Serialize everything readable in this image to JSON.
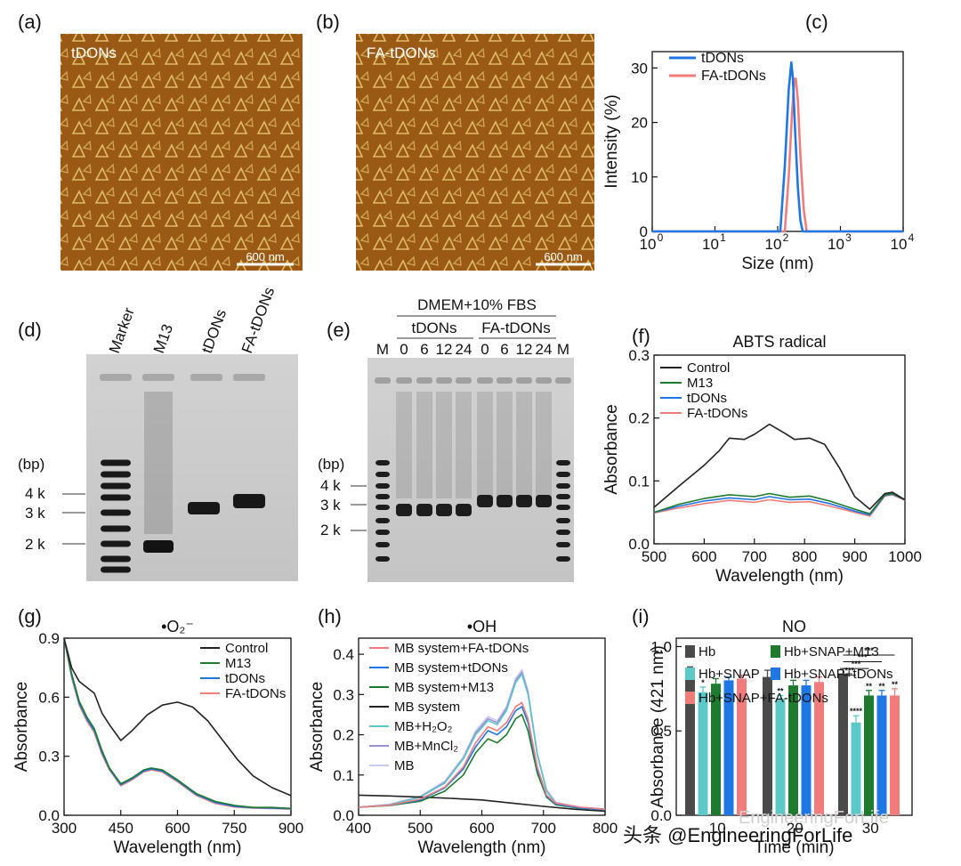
{
  "panels": {
    "a": {
      "letter": "(a)",
      "label": "tDONs",
      "scale_bar": "600 nm"
    },
    "b": {
      "letter": "(b)",
      "label": "FA-tDONs",
      "scale_bar": "600 nm"
    },
    "d": {
      "letter": "(d)",
      "lanes": [
        "Marker",
        "M13",
        "tDONs",
        "FA-tDONs"
      ],
      "bp_label": "(bp)",
      "ladder": [
        "4 k",
        "3 k",
        "2 k"
      ]
    },
    "e": {
      "letter": "(e)",
      "header": "DMEM+10% FBS",
      "groups": [
        "tDONs",
        "FA-tDONs"
      ],
      "lanes": [
        "M",
        "0",
        "6",
        "12",
        "24",
        "0",
        "6",
        "12",
        "24",
        "M"
      ],
      "bp_label": "(bp)",
      "ladder": [
        "4 k",
        "3 k",
        "2 k"
      ]
    }
  },
  "watermark": {
    "ghost": "EngineeringForLife",
    "text": "头条 @EngineeringForLife"
  },
  "chart_data": [
    {
      "id": "c",
      "letter": "(c)",
      "type": "line",
      "xscale": "log",
      "title": "",
      "xlabel": "Size (nm)",
      "ylabel": "Intensity (%)",
      "xlim": [
        1,
        10000
      ],
      "ylim": [
        0,
        33
      ],
      "xticks": [
        "10",
        "10",
        "10",
        "10",
        "10"
      ],
      "xtick_exp": [
        "0",
        "1",
        "2",
        "3",
        "4"
      ],
      "yticks": [
        "0",
        "10",
        "20",
        "30"
      ],
      "series": [
        {
          "name": "tDONs",
          "color": "#1f77e6",
          "x": [
            1,
            110,
            130,
            150,
            165,
            175,
            190,
            210,
            230,
            250,
            10000
          ],
          "y": [
            0,
            0,
            12,
            26,
            31,
            28,
            18,
            8,
            2,
            0,
            0
          ]
        },
        {
          "name": "FA-tDONs",
          "color": "#f07c7c",
          "x": [
            1,
            130,
            150,
            170,
            185,
            195,
            210,
            230,
            260,
            290,
            10000
          ],
          "y": [
            0,
            0,
            10,
            22,
            28,
            28,
            24,
            14,
            4,
            0,
            0
          ]
        }
      ]
    },
    {
      "id": "f",
      "letter": "(f)",
      "type": "line",
      "title": "ABTS radical",
      "xlabel": "Wavelength (nm)",
      "ylabel": "Absorbance",
      "xlim": [
        500,
        1000
      ],
      "ylim": [
        0,
        0.3
      ],
      "xticks": [
        "500",
        "600",
        "700",
        "800",
        "900",
        "1000"
      ],
      "yticks": [
        "0.0",
        "0.1",
        "0.2",
        "0.3"
      ],
      "series": [
        {
          "name": "Control",
          "color": "#222222",
          "x": [
            500,
            550,
            600,
            630,
            650,
            680,
            700,
            730,
            760,
            780,
            810,
            840,
            870,
            900,
            930,
            960,
            975,
            1000
          ],
          "y": [
            0.058,
            0.092,
            0.125,
            0.148,
            0.168,
            0.166,
            0.174,
            0.19,
            0.176,
            0.166,
            0.168,
            0.158,
            0.12,
            0.075,
            0.055,
            0.08,
            0.082,
            0.07
          ]
        },
        {
          "name": "M13",
          "color": "#1e7a2e",
          "x": [
            500,
            550,
            600,
            650,
            700,
            730,
            770,
            810,
            850,
            900,
            930,
            960,
            975,
            1000
          ],
          "y": [
            0.05,
            0.063,
            0.072,
            0.078,
            0.075,
            0.08,
            0.074,
            0.076,
            0.068,
            0.055,
            0.048,
            0.078,
            0.08,
            0.07
          ]
        },
        {
          "name": "tDONs",
          "color": "#1f77e6",
          "x": [
            500,
            550,
            600,
            650,
            700,
            730,
            770,
            810,
            850,
            900,
            930,
            960,
            975,
            1000
          ],
          "y": [
            0.05,
            0.06,
            0.068,
            0.073,
            0.07,
            0.075,
            0.07,
            0.071,
            0.064,
            0.052,
            0.046,
            0.077,
            0.079,
            0.07
          ]
        },
        {
          "name": "FA-tDONs",
          "color": "#f07c7c",
          "x": [
            500,
            550,
            600,
            650,
            700,
            730,
            770,
            810,
            850,
            900,
            930,
            960,
            975,
            1000
          ],
          "y": [
            0.049,
            0.057,
            0.064,
            0.069,
            0.066,
            0.07,
            0.066,
            0.067,
            0.06,
            0.05,
            0.044,
            0.076,
            0.078,
            0.069
          ]
        }
      ]
    },
    {
      "id": "g",
      "letter": "(g)",
      "type": "line",
      "title": "•O₂⁻",
      "xlabel": "Wavelength (nm)",
      "ylabel": "Absorbance",
      "xlim": [
        300,
        900
      ],
      "ylim": [
        0,
        0.9
      ],
      "xticks": [
        "300",
        "450",
        "600",
        "750",
        "900"
      ],
      "yticks": [
        "0.0",
        "0.3",
        "0.6",
        "0.9"
      ],
      "series": [
        {
          "name": "Control",
          "color": "#222222",
          "x": [
            300,
            320,
            340,
            360,
            380,
            400,
            420,
            450,
            480,
            520,
            560,
            600,
            640,
            680,
            720,
            760,
            800,
            850,
            900
          ],
          "y": [
            0.9,
            0.75,
            0.68,
            0.65,
            0.62,
            0.52,
            0.46,
            0.38,
            0.43,
            0.51,
            0.56,
            0.575,
            0.55,
            0.48,
            0.38,
            0.28,
            0.2,
            0.14,
            0.1
          ]
        },
        {
          "name": "M13",
          "color": "#1e7a2e",
          "x": [
            300,
            320,
            340,
            360,
            380,
            400,
            420,
            450,
            480,
            510,
            530,
            560,
            600,
            650,
            700,
            750,
            800,
            850,
            900
          ],
          "y": [
            0.9,
            0.72,
            0.58,
            0.5,
            0.44,
            0.33,
            0.24,
            0.16,
            0.19,
            0.23,
            0.24,
            0.23,
            0.18,
            0.11,
            0.07,
            0.05,
            0.04,
            0.04,
            0.035
          ]
        },
        {
          "name": "tDONs",
          "color": "#1f77e6",
          "x": [
            300,
            320,
            340,
            360,
            380,
            400,
            420,
            450,
            480,
            510,
            530,
            560,
            600,
            650,
            700,
            750,
            800,
            850,
            900
          ],
          "y": [
            0.9,
            0.71,
            0.57,
            0.49,
            0.43,
            0.32,
            0.235,
            0.155,
            0.185,
            0.225,
            0.235,
            0.225,
            0.175,
            0.105,
            0.065,
            0.045,
            0.038,
            0.036,
            0.033
          ]
        },
        {
          "name": "FA-tDONs",
          "color": "#f07c7c",
          "x": [
            300,
            320,
            340,
            360,
            380,
            400,
            420,
            450,
            480,
            510,
            530,
            560,
            600,
            650,
            700,
            750,
            800,
            850,
            900
          ],
          "y": [
            0.9,
            0.7,
            0.56,
            0.48,
            0.42,
            0.31,
            0.23,
            0.15,
            0.18,
            0.22,
            0.23,
            0.22,
            0.17,
            0.1,
            0.06,
            0.042,
            0.036,
            0.034,
            0.031
          ]
        }
      ]
    },
    {
      "id": "h",
      "letter": "(h)",
      "type": "line",
      "title": "•OH",
      "xlabel": "Wavelength (nm)",
      "ylabel": "Absorbance",
      "xlim": [
        400,
        800
      ],
      "ylim": [
        0,
        0.44
      ],
      "xticks": [
        "400",
        "500",
        "600",
        "700",
        "800"
      ],
      "yticks": [
        "0.0",
        "0.1",
        "0.2",
        "0.3",
        "0.4"
      ],
      "series": [
        {
          "name": "MB system+FA-tDONs",
          "color": "#f07c7c",
          "x": [
            400,
            450,
            500,
            540,
            570,
            590,
            610,
            625,
            640,
            655,
            665,
            675,
            690,
            705,
            720,
            760,
            800
          ],
          "y": [
            0.02,
            0.025,
            0.04,
            0.07,
            0.12,
            0.18,
            0.22,
            0.21,
            0.23,
            0.27,
            0.28,
            0.24,
            0.12,
            0.05,
            0.03,
            0.02,
            0.015
          ]
        },
        {
          "name": "MB system+tDONs",
          "color": "#1f77e6",
          "x": [
            400,
            450,
            500,
            540,
            570,
            590,
            610,
            625,
            640,
            655,
            665,
            675,
            690,
            705,
            720,
            760,
            800
          ],
          "y": [
            0.02,
            0.025,
            0.038,
            0.068,
            0.115,
            0.17,
            0.21,
            0.2,
            0.22,
            0.26,
            0.27,
            0.23,
            0.115,
            0.048,
            0.028,
            0.018,
            0.014
          ]
        },
        {
          "name": "MB system+M13",
          "color": "#1e7a2e",
          "x": [
            400,
            450,
            500,
            540,
            570,
            590,
            610,
            625,
            640,
            655,
            665,
            675,
            690,
            705,
            720,
            760,
            800
          ],
          "y": [
            0.02,
            0.024,
            0.035,
            0.06,
            0.1,
            0.155,
            0.19,
            0.18,
            0.2,
            0.24,
            0.25,
            0.21,
            0.105,
            0.045,
            0.026,
            0.017,
            0.013
          ]
        },
        {
          "name": "MB system",
          "color": "#222222",
          "x": [
            400,
            450,
            500,
            550,
            600,
            650,
            700,
            750,
            800
          ],
          "y": [
            0.05,
            0.048,
            0.045,
            0.042,
            0.038,
            0.03,
            0.022,
            0.015,
            0.01
          ]
        },
        {
          "name": "MB+H₂O₂",
          "color": "#5cc8c8",
          "x": [
            400,
            450,
            500,
            540,
            570,
            590,
            610,
            625,
            640,
            655,
            665,
            675,
            690,
            705,
            720,
            760,
            800
          ],
          "y": [
            0.02,
            0.026,
            0.045,
            0.08,
            0.14,
            0.2,
            0.235,
            0.225,
            0.26,
            0.33,
            0.35,
            0.3,
            0.15,
            0.06,
            0.03,
            0.02,
            0.015
          ]
        },
        {
          "name": "MB+MnCl₂",
          "color": "#9b8fd6",
          "x": [
            400,
            450,
            500,
            540,
            570,
            590,
            610,
            625,
            640,
            655,
            665,
            675,
            690,
            705,
            720,
            760,
            800
          ],
          "y": [
            0.02,
            0.026,
            0.046,
            0.082,
            0.142,
            0.205,
            0.24,
            0.23,
            0.265,
            0.335,
            0.355,
            0.305,
            0.152,
            0.062,
            0.031,
            0.02,
            0.015
          ]
        },
        {
          "name": "MB",
          "color": "#c8c8ee",
          "x": [
            400,
            450,
            500,
            540,
            570,
            590,
            610,
            625,
            640,
            655,
            665,
            675,
            690,
            705,
            720,
            760,
            800
          ],
          "y": [
            0.02,
            0.027,
            0.047,
            0.085,
            0.145,
            0.21,
            0.245,
            0.235,
            0.27,
            0.34,
            0.362,
            0.31,
            0.155,
            0.064,
            0.032,
            0.02,
            0.015
          ]
        }
      ]
    },
    {
      "id": "i",
      "letter": "(i)",
      "type": "bar",
      "title": "NO",
      "xlabel": "Time (min)",
      "ylabel": "Absorbance (421 nm)",
      "ylim": [
        0,
        1.05
      ],
      "yticks": [
        "0.0",
        "0.5",
        "1.0"
      ],
      "ytick_values": [
        0,
        0.5,
        1.0
      ],
      "categories": [
        "10",
        "20",
        "30"
      ],
      "series": [
        {
          "name": "Hb",
          "color": "#4a4a4a",
          "values": [
            0.84,
            0.82,
            0.84
          ],
          "err": [
            0.04,
            0.04,
            0.03
          ],
          "sig": [
            "",
            "",
            ""
          ]
        },
        {
          "name": "Hb+SNAP",
          "color": "#5cc8c8",
          "values": [
            0.73,
            0.69,
            0.55
          ],
          "err": [
            0.03,
            0.02,
            0.04
          ],
          "sig": [
            "*",
            "**",
            "****"
          ]
        },
        {
          "name": "Hb+SNAP+M13",
          "color": "#1e7a2e",
          "values": [
            0.78,
            0.77,
            0.71
          ],
          "err": [
            0.03,
            0.03,
            0.03
          ],
          "sig": [
            "",
            "",
            "**"
          ]
        },
        {
          "name": "Hb+SNAP+tDONs",
          "color": "#1f77e6",
          "values": [
            0.8,
            0.77,
            0.71
          ],
          "err": [
            0.02,
            0.03,
            0.03
          ],
          "sig": [
            "",
            "",
            "**"
          ]
        },
        {
          "name": "Hb+SNAP+FA-tDONs",
          "color": "#f07c7c",
          "values": [
            0.81,
            0.79,
            0.71
          ],
          "err": [
            0.02,
            0.03,
            0.04
          ],
          "sig": [
            "",
            "",
            "**"
          ]
        }
      ],
      "brackets": [
        "***",
        "***",
        "***",
        "***"
      ]
    }
  ]
}
